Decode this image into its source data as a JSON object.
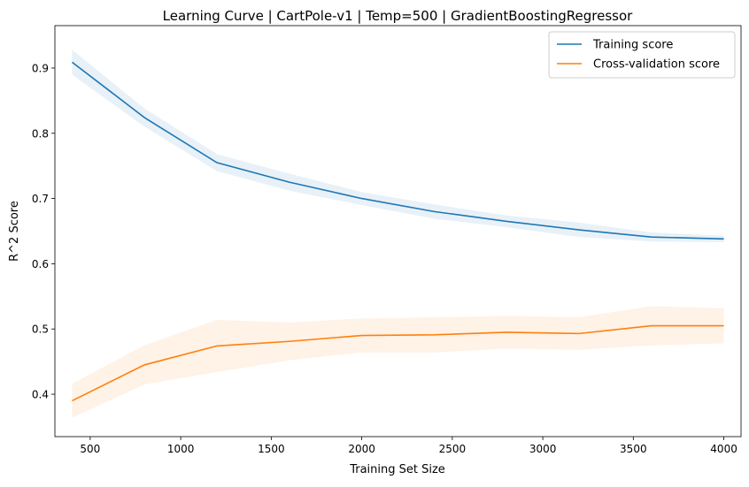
{
  "chart_data": {
    "type": "line",
    "title": "Learning Curve | CartPole-v1 | Temp=500 | GradientBoostingRegressor",
    "xlabel": "Training Set Size",
    "ylabel": "R^2 Score",
    "xlim": [
      305,
      4095
    ],
    "ylim": [
      0.335,
      0.965
    ],
    "xticks": [
      500,
      1000,
      1500,
      2000,
      2500,
      3000,
      3500,
      4000
    ],
    "yticks": [
      0.4,
      0.5,
      0.6,
      0.7,
      0.8,
      0.9
    ],
    "xtick_labels": [
      "500",
      "1000",
      "1500",
      "2000",
      "2500",
      "3000",
      "3500",
      "4000"
    ],
    "ytick_labels": [
      "0.4",
      "0.5",
      "0.6",
      "0.7",
      "0.8",
      "0.9"
    ],
    "legend_position": "upper right",
    "x": [
      400,
      800,
      1200,
      1600,
      2000,
      2400,
      2800,
      3200,
      3600,
      4000
    ],
    "series": [
      {
        "name": "Training score",
        "color": "#1f77b4",
        "values": [
          0.909,
          0.824,
          0.755,
          0.725,
          0.7,
          0.68,
          0.665,
          0.652,
          0.641,
          0.638
        ],
        "band_upper": [
          0.928,
          0.838,
          0.768,
          0.738,
          0.71,
          0.691,
          0.674,
          0.663,
          0.648,
          0.643
        ],
        "band_lower": [
          0.89,
          0.81,
          0.742,
          0.712,
          0.69,
          0.669,
          0.656,
          0.641,
          0.634,
          0.633
        ]
      },
      {
        "name": "Cross-validation score",
        "color": "#ff7f0e",
        "values": [
          0.39,
          0.445,
          0.474,
          0.481,
          0.49,
          0.491,
          0.495,
          0.493,
          0.505,
          0.505
        ],
        "band_upper": [
          0.416,
          0.475,
          0.514,
          0.51,
          0.516,
          0.518,
          0.52,
          0.518,
          0.535,
          0.532
        ],
        "band_lower": [
          0.364,
          0.415,
          0.434,
          0.452,
          0.464,
          0.464,
          0.47,
          0.468,
          0.475,
          0.478
        ]
      }
    ]
  }
}
